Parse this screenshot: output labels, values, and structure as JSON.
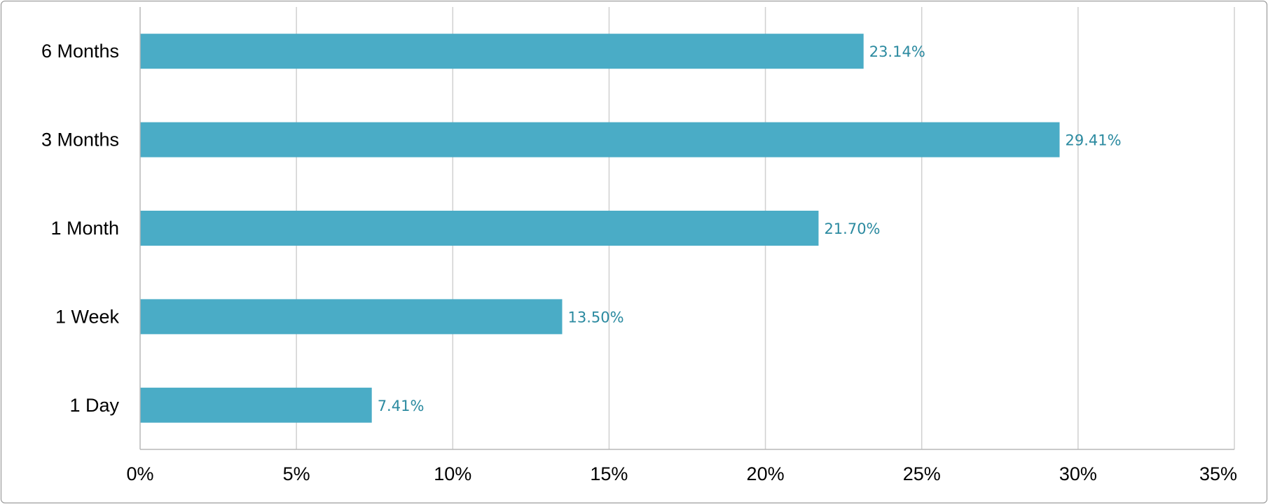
{
  "chart_data": {
    "type": "bar",
    "orientation": "horizontal",
    "categories": [
      "6 Months",
      "3 Months",
      "1 Month",
      "1 Week",
      "1 Day"
    ],
    "values": [
      23.14,
      29.41,
      21.7,
      13.5,
      7.41
    ],
    "data_labels": [
      "23.14%",
      "29.41%",
      "21.70%",
      "13.50%",
      "7.41%"
    ],
    "x_ticks": [
      "0%",
      "5%",
      "10%",
      "15%",
      "20%",
      "25%",
      "30%",
      "35%"
    ],
    "xlim": [
      0,
      35
    ],
    "x_tick_step": 5,
    "grid": true,
    "legend": "none",
    "title": "",
    "xlabel": "",
    "ylabel": "",
    "bar_color": "#4aacc6",
    "data_label_color": "#2b8aa0"
  }
}
